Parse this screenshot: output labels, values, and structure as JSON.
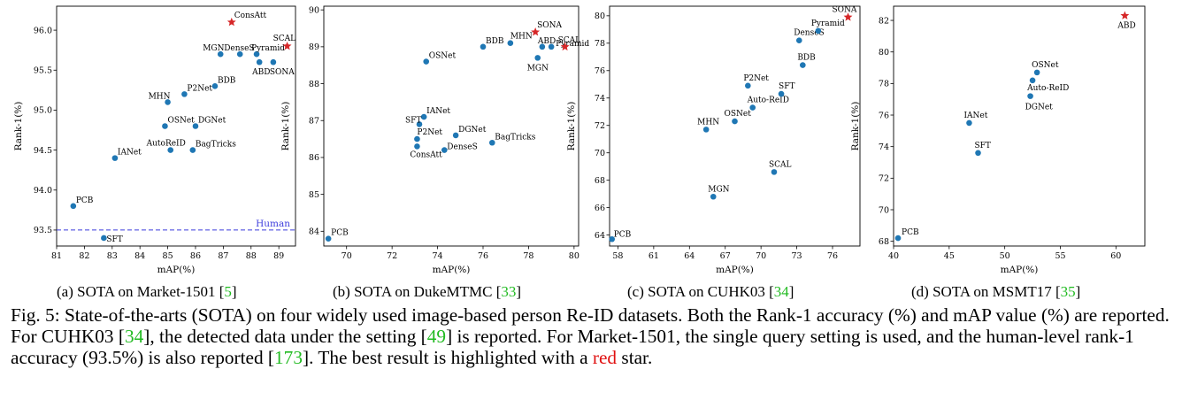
{
  "panel_captions": [
    {
      "label": "(a) SOTA on Market-1501 [",
      "ref": "5",
      "end": "]"
    },
    {
      "label": "(b) SOTA on DukeMTMC [",
      "ref": "33",
      "end": "]"
    },
    {
      "label": "(c) SOTA on CUHK03 [",
      "ref": "34",
      "end": "]"
    },
    {
      "label": "(d) SOTA on MSMT17 [",
      "ref": "35",
      "end": "]"
    }
  ],
  "figure_caption": {
    "t1": "Fig. 5: State-of-the-arts (SOTA) on four widely used image-based person Re-ID datasets. Both the Rank-1 accuracy (%) and mAP value (%) are reported. For CUHK03 [",
    "r1": "34",
    "t2": "], the detected data under the setting [",
    "r2": "49",
    "t3": "] is reported. For Market-1501, the single query setting is used, and the human-level rank-1 accuracy (93.5%) is also reported [",
    "r3": "173",
    "t4": "]. The best result is highlighted with a ",
    "red_word": "red",
    "t5": " star."
  },
  "colors": {
    "point": "#1f77b4",
    "best": "#d62728",
    "human_line": "#3b3bdc",
    "ref": "#22bb22"
  },
  "chart_data": [
    {
      "type": "scatter",
      "xlabel": "mAP(%)",
      "ylabel": "Rank-1(%)",
      "xlim": [
        81,
        89.6
      ],
      "ylim": [
        93.3,
        96.3
      ],
      "xticks": [
        81,
        82,
        83,
        84,
        85,
        86,
        87,
        88,
        89
      ],
      "yticks": [
        93.5,
        94.0,
        94.5,
        95.0,
        95.5,
        96.0
      ],
      "ytick_decimals": 1,
      "hline": {
        "y": 93.5,
        "label": "Human"
      },
      "points": [
        {
          "name": "PCB",
          "x": 81.6,
          "y": 93.8
        },
        {
          "name": "SFT",
          "x": 82.7,
          "y": 93.4
        },
        {
          "name": "IANet",
          "x": 83.1,
          "y": 94.4
        },
        {
          "name": "AutoReID",
          "x": 85.1,
          "y": 94.5
        },
        {
          "name": "BagTricks",
          "x": 85.9,
          "y": 94.5
        },
        {
          "name": "OSNet",
          "x": 84.9,
          "y": 94.8
        },
        {
          "name": "DGNet",
          "x": 86.0,
          "y": 94.8
        },
        {
          "name": "MHN",
          "x": 85.0,
          "y": 95.1
        },
        {
          "name": "P2Net",
          "x": 85.6,
          "y": 95.2
        },
        {
          "name": "BDB",
          "x": 86.7,
          "y": 95.3
        },
        {
          "name": "MGN",
          "x": 86.9,
          "y": 95.7
        },
        {
          "name": "DenseS",
          "x": 87.6,
          "y": 95.7
        },
        {
          "name": "Pyramid",
          "x": 88.2,
          "y": 95.7
        },
        {
          "name": "ABD",
          "x": 88.3,
          "y": 95.6
        },
        {
          "name": "SONA",
          "x": 88.8,
          "y": 95.6
        },
        {
          "name": "SCAL",
          "x": 89.3,
          "y": 95.8,
          "best": true
        },
        {
          "name": "ConsAtt",
          "x": 87.3,
          "y": 96.1,
          "best": true
        }
      ]
    },
    {
      "type": "scatter",
      "xlabel": "mAP(%)",
      "ylabel": "Rank-1(%)",
      "xlim": [
        69,
        80.2
      ],
      "ylim": [
        83.6,
        90.1
      ],
      "xticks": [
        70,
        72,
        74,
        76,
        78,
        80
      ],
      "yticks": [
        84,
        85,
        86,
        87,
        88,
        89,
        90
      ],
      "ytick_decimals": 0,
      "points": [
        {
          "name": "PCB",
          "x": 69.2,
          "y": 83.8
        },
        {
          "name": "OSNet",
          "x": 73.5,
          "y": 88.6
        },
        {
          "name": "IANet",
          "x": 73.4,
          "y": 87.1
        },
        {
          "name": "SFT",
          "x": 73.2,
          "y": 86.9
        },
        {
          "name": "P2Net",
          "x": 73.1,
          "y": 86.5
        },
        {
          "name": "ConsAtt",
          "x": 73.1,
          "y": 86.3
        },
        {
          "name": "DenseS",
          "x": 74.3,
          "y": 86.2
        },
        {
          "name": "DGNet",
          "x": 74.8,
          "y": 86.6
        },
        {
          "name": "BagTricks",
          "x": 76.4,
          "y": 86.4
        },
        {
          "name": "BDB",
          "x": 76.0,
          "y": 89.0
        },
        {
          "name": "MHN",
          "x": 77.2,
          "y": 89.1
        },
        {
          "name": "ABD",
          "x": 78.6,
          "y": 89.0
        },
        {
          "name": "MGN",
          "x": 78.4,
          "y": 88.7
        },
        {
          "name": "Pyramid",
          "x": 79.0,
          "y": 89.0
        },
        {
          "name": "SONA",
          "x": 78.3,
          "y": 89.4,
          "best": true
        },
        {
          "name": "SCAL",
          "x": 79.6,
          "y": 89.0,
          "best": true
        }
      ]
    },
    {
      "type": "scatter",
      "xlabel": "mAP(%)",
      "ylabel": "Rank-1(%)",
      "xlim": [
        57.3,
        78.3
      ],
      "ylim": [
        63.2,
        80.7
      ],
      "xticks": [
        58,
        61,
        64,
        67,
        70,
        73,
        76
      ],
      "yticks": [
        64,
        66,
        68,
        70,
        72,
        74,
        76,
        78,
        80
      ],
      "ytick_decimals": 0,
      "points": [
        {
          "name": "PCB",
          "x": 57.5,
          "y": 63.7
        },
        {
          "name": "MGN",
          "x": 66.0,
          "y": 66.8
        },
        {
          "name": "MHN",
          "x": 65.4,
          "y": 71.7
        },
        {
          "name": "OSNet",
          "x": 67.8,
          "y": 72.3
        },
        {
          "name": "Auto-ReID",
          "x": 69.3,
          "y": 73.3
        },
        {
          "name": "SFT",
          "x": 71.7,
          "y": 74.3
        },
        {
          "name": "P2Net",
          "x": 68.9,
          "y": 74.9
        },
        {
          "name": "SCAL",
          "x": 71.1,
          "y": 68.6
        },
        {
          "name": "BDB",
          "x": 73.5,
          "y": 76.4
        },
        {
          "name": "DenseS",
          "x": 73.2,
          "y": 78.2
        },
        {
          "name": "Pyramid",
          "x": 74.8,
          "y": 78.9
        },
        {
          "name": "SONA",
          "x": 77.3,
          "y": 79.9,
          "best": true
        }
      ]
    },
    {
      "type": "scatter",
      "xlabel": "mAP(%)",
      "ylabel": "Rank-1(%)",
      "xlim": [
        40,
        62.6
      ],
      "ylim": [
        67.7,
        82.9
      ],
      "xticks": [
        40,
        45,
        50,
        55,
        60
      ],
      "yticks": [
        68,
        70,
        72,
        74,
        76,
        78,
        80,
        82
      ],
      "ytick_decimals": 0,
      "points": [
        {
          "name": "PCB",
          "x": 40.4,
          "y": 68.2
        },
        {
          "name": "IANet",
          "x": 46.8,
          "y": 75.5
        },
        {
          "name": "SFT",
          "x": 47.6,
          "y": 73.6
        },
        {
          "name": "OSNet",
          "x": 52.9,
          "y": 78.7
        },
        {
          "name": "Auto-ReID",
          "x": 52.5,
          "y": 78.2
        },
        {
          "name": "DGNet",
          "x": 52.3,
          "y": 77.2
        },
        {
          "name": "ABD",
          "x": 60.8,
          "y": 82.3,
          "best": true
        }
      ]
    }
  ]
}
